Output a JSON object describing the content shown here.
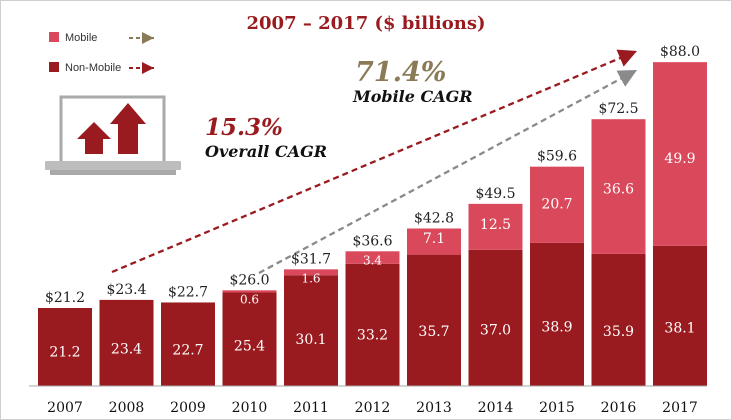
{
  "chart_data": {
    "type": "bar",
    "stacked": true,
    "title": "2007 – 2017 ($ billions)",
    "categories": [
      "2007",
      "2008",
      "2009",
      "2010",
      "2011",
      "2012",
      "2013",
      "2014",
      "2015",
      "2016",
      "2017"
    ],
    "series": [
      {
        "name": "Non-Mobile",
        "color": "#9a1b1f",
        "values": [
          21.2,
          23.4,
          22.7,
          25.4,
          30.1,
          33.2,
          35.7,
          37.0,
          38.9,
          35.9,
          38.1
        ],
        "labels": [
          "21.2",
          "23.4",
          "22.7",
          "25.4",
          "30.1",
          "33.2",
          "35.7",
          "37.0",
          "38.9",
          "35.9",
          "38.1"
        ]
      },
      {
        "name": "Mobile",
        "color": "#d9485b",
        "values": [
          0,
          0,
          0,
          0.6,
          1.6,
          3.4,
          7.1,
          12.5,
          20.7,
          36.6,
          49.9
        ],
        "labels": [
          "",
          "",
          "",
          "0.6",
          "1.6",
          "3.4",
          "7.1",
          "12.5",
          "20.7",
          "36.6",
          "49.9"
        ]
      }
    ],
    "totals": [
      "$21.2",
      "$23.4",
      "$22.7",
      "$26.0",
      "$31.7",
      "$36.6",
      "$42.8",
      "$49.5",
      "$59.6",
      "$72.5",
      "$88.0"
    ],
    "ylim": [
      0,
      95
    ],
    "grid": false,
    "legend_placement": "top-left",
    "annotations": [
      {
        "value": "15.3%",
        "label": "Overall CAGR",
        "color": "#9a1b1f"
      },
      {
        "value": "71.4%",
        "label": "Mobile CAGR",
        "color": "#8a7a57"
      }
    ],
    "icon": "laptop-growth-icon",
    "trend_colors": {
      "overall": "#9a1b1f",
      "mobile": "#8a8a8a"
    }
  }
}
